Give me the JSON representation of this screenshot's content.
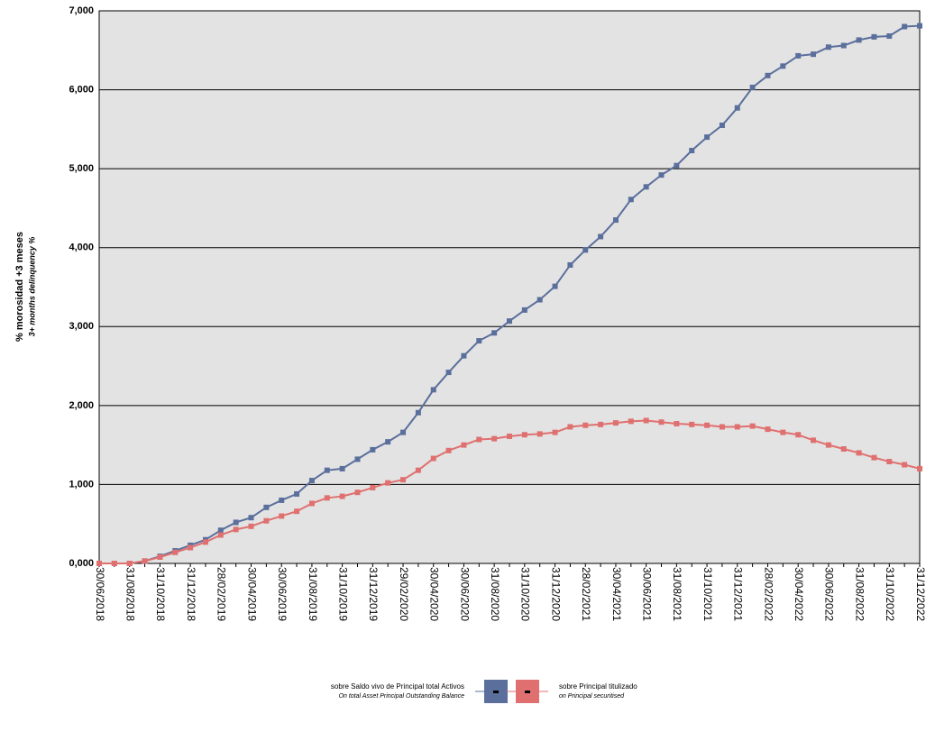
{
  "chart_data": {
    "type": "line",
    "y_title": "% morosidad +3 meses",
    "y_subtitle": "3+ months delinquency %",
    "categories": [
      "30/06/2018",
      null,
      "31/08/2018",
      null,
      "31/10/2018",
      null,
      "31/12/2018",
      null,
      "28/02/2019",
      null,
      "30/04/2019",
      null,
      "30/06/2019",
      null,
      "31/08/2019",
      null,
      "31/10/2019",
      null,
      "31/12/2019",
      null,
      "29/02/2020",
      null,
      "30/04/2020",
      null,
      "30/06/2020",
      null,
      "31/08/2020",
      null,
      "31/10/2020",
      null,
      "31/12/2020",
      null,
      "28/02/2021",
      null,
      "30/04/2021",
      null,
      "30/06/2021",
      null,
      "31/08/2021",
      null,
      "31/10/2021",
      null,
      "31/12/2021",
      null,
      "28/02/2022",
      null,
      "30/04/2022",
      null,
      "30/06/2022",
      null,
      "31/08/2022",
      null,
      "31/10/2022",
      null,
      "31/12/2022"
    ],
    "series": [
      {
        "name": "sobre Saldo vivo de Principal total Activos",
        "subtitle": "On total Asset Principal Outstanding Balance",
        "color": "#5b6f9c",
        "values": [
          0,
          0,
          0,
          0.03,
          0.09,
          0.16,
          0.23,
          0.3,
          0.42,
          0.52,
          0.58,
          0.71,
          0.8,
          0.88,
          1.05,
          1.18,
          1.2,
          1.32,
          1.44,
          1.54,
          1.66,
          1.91,
          2.2,
          2.42,
          2.63,
          2.82,
          2.92,
          3.07,
          3.21,
          3.34,
          3.51,
          3.78,
          3.97,
          4.14,
          4.35,
          4.61,
          4.77,
          4.92,
          5.04,
          5.23,
          5.4,
          5.55,
          5.77,
          6.03,
          6.18,
          6.3,
          6.43,
          6.45,
          6.54,
          6.56,
          6.63,
          6.67,
          6.68,
          6.8,
          6.81
        ]
      },
      {
        "name": "sobre Principal titulizado",
        "subtitle": "on Principal securitised",
        "color": "#e07070",
        "values": [
          0,
          0,
          0,
          0.03,
          0.08,
          0.14,
          0.2,
          0.27,
          0.36,
          0.43,
          0.47,
          0.54,
          0.6,
          0.66,
          0.76,
          0.83,
          0.85,
          0.9,
          0.96,
          1.02,
          1.06,
          1.18,
          1.33,
          1.43,
          1.5,
          1.57,
          1.58,
          1.61,
          1.63,
          1.64,
          1.66,
          1.73,
          1.75,
          1.76,
          1.78,
          1.8,
          1.81,
          1.79,
          1.77,
          1.76,
          1.75,
          1.73,
          1.73,
          1.74,
          1.7,
          1.66,
          1.63,
          1.56,
          1.5,
          1.45,
          1.4,
          1.34,
          1.29,
          1.25,
          1.2
        ]
      }
    ],
    "ylim": [
      0,
      7
    ],
    "yticks": [
      {
        "value": 0,
        "label": "0,000"
      },
      {
        "value": 1,
        "label": "1,000"
      },
      {
        "value": 2,
        "label": "2,000"
      },
      {
        "value": 3,
        "label": "3,000"
      },
      {
        "value": 4,
        "label": "4,000"
      },
      {
        "value": 5,
        "label": "5,000"
      },
      {
        "value": 6,
        "label": "6,000"
      },
      {
        "value": 7,
        "label": "7,000"
      }
    ],
    "grid": true,
    "plot_background": "#e3e3e3",
    "legend": "bottom"
  }
}
